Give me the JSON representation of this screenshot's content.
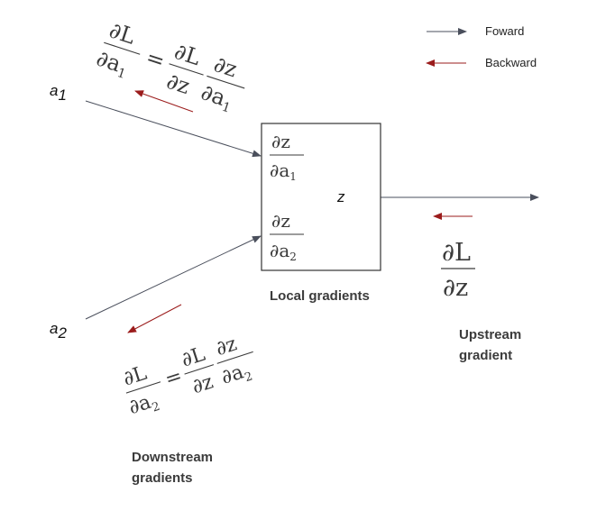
{
  "legend": {
    "forward": "Foward",
    "backward": "Backward"
  },
  "inputs": {
    "a1": "a",
    "a1_sub": "1",
    "a2": "a",
    "a2_sub": "2"
  },
  "node": {
    "output_var": "z",
    "local_top_num": "∂z",
    "local_top_den": "∂a",
    "local_top_den_sub": "1",
    "local_bot_num": "∂z",
    "local_bot_den": "∂a",
    "local_bot_den_sub": "2"
  },
  "labels": {
    "local_gradients": "Local gradients",
    "upstream_line1": "Upstream",
    "upstream_line2": "gradient",
    "downstream_line1": "Downstream",
    "downstream_line2": "gradients"
  },
  "upstream": {
    "num": "∂L",
    "den": "∂z"
  },
  "eq_top": {
    "lhs_num": "∂L",
    "lhs_den": "∂a",
    "lhs_den_sub": "1",
    "eq": "=",
    "r1_num": "∂L",
    "r1_den": "∂z",
    "r2_num": "∂z",
    "r2_den": "∂a",
    "r2_den_sub": "1"
  },
  "eq_bot": {
    "lhs_num": "∂L",
    "lhs_den": "∂a",
    "lhs_den_sub": "2",
    "eq": "=",
    "r1_num": "∂L",
    "r1_den": "∂z",
    "r2_num": "∂z",
    "r2_den": "∂a",
    "r2_den_sub": "2"
  },
  "colors": {
    "forward": "#4a4f5c",
    "backward": "#9b1c1c",
    "box_border": "#333333"
  }
}
